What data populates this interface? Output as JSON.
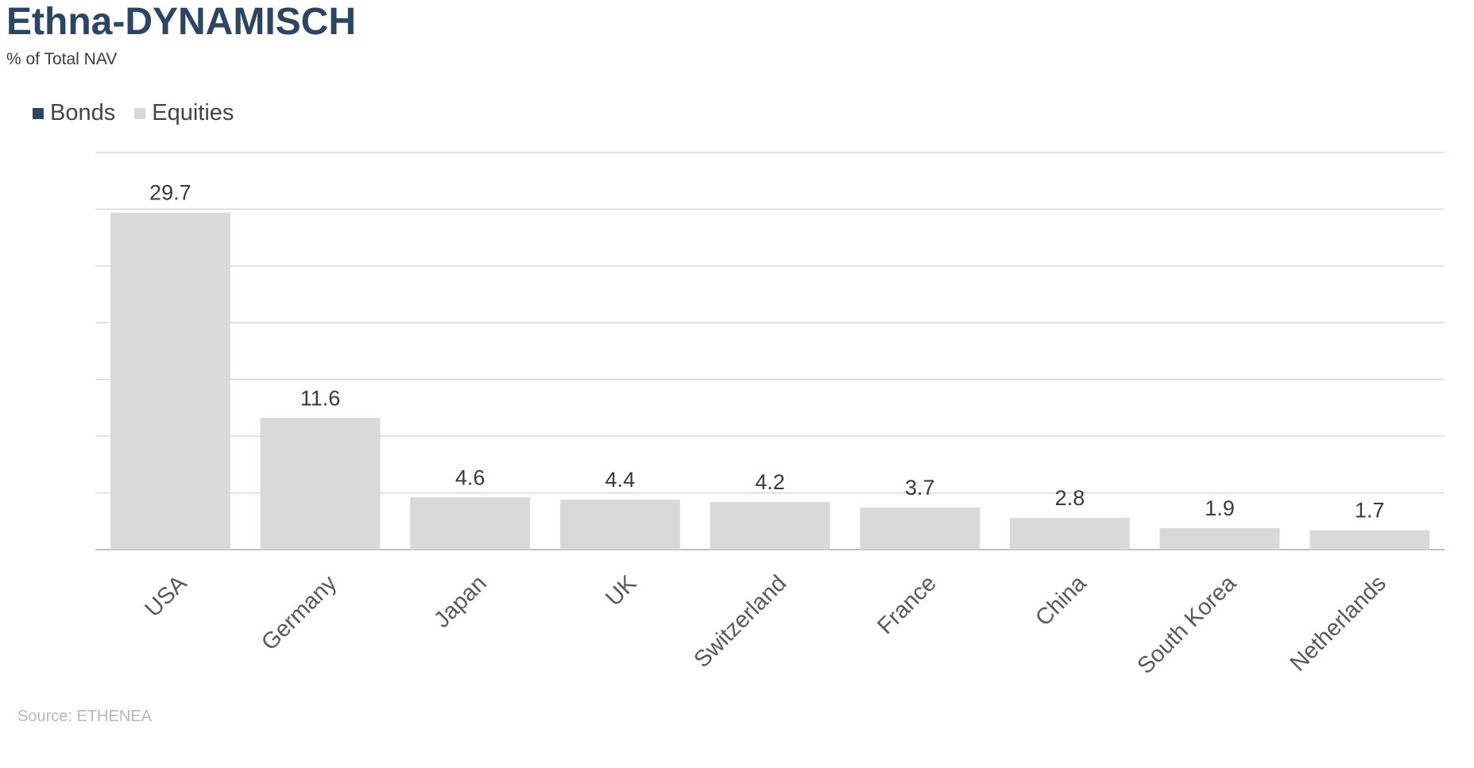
{
  "header": {
    "title": "Ethna-DYNAMISCH",
    "subtitle": "% of Total NAV"
  },
  "legend": {
    "items": [
      {
        "label": "Bonds",
        "color": "#2b4563"
      },
      {
        "label": "Equities",
        "color": "#d9d9d9"
      }
    ]
  },
  "footer": {
    "source": "Source: ETHENEA"
  },
  "chart_data": {
    "type": "bar",
    "title": "Ethna-DYNAMISCH",
    "subtitle": "% of Total NAV",
    "categories": [
      "USA",
      "Germany",
      "Japan",
      "UK",
      "Switzerland",
      "France",
      "China",
      "South Korea",
      "Netherlands"
    ],
    "series": [
      {
        "name": "Bonds",
        "values": [
          0,
          0,
          0,
          0,
          0,
          0,
          0,
          0,
          0
        ],
        "color": "#2b4563"
      },
      {
        "name": "Equities",
        "values": [
          29.7,
          11.6,
          4.6,
          4.4,
          4.2,
          3.7,
          2.8,
          1.9,
          1.7
        ],
        "color": "#d9d9d9"
      }
    ],
    "data_labels": [
      "29.7",
      "11.6",
      "4.6",
      "4.4",
      "4.2",
      "3.7",
      "2.8",
      "1.9",
      "1.7"
    ],
    "ylim": [
      0,
      35
    ],
    "grid": true,
    "legend_position": "top-left",
    "xlabel": "",
    "ylabel": ""
  }
}
